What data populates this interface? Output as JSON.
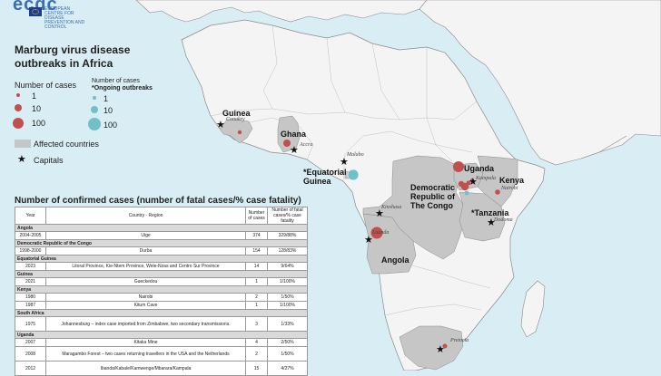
{
  "logo": {
    "text": "ecdc",
    "agency": "EUROPEAN CENTRE FOR DISEASE PREVENTION AND CONTROL"
  },
  "title": "Marburg virus disease outbreaks in Africa",
  "legend": {
    "cases_title": "Number of cases",
    "cases_values": [
      "1",
      "10",
      "100"
    ],
    "ongoing_title": "Number of cases",
    "ongoing_subtitle": "*Ongoing outbreaks",
    "ongoing_values": [
      "1",
      "10",
      "100"
    ],
    "affected_label": "Affected countries",
    "capitals_label": "Capitals"
  },
  "colors": {
    "past": "#c0504d",
    "ongoing": "#72bfc8",
    "affected": "#c6c6c6",
    "land": "#f4f4f4",
    "sea": "#d9eef4"
  },
  "countries": {
    "guinea": "Guinea",
    "ghana": "Ghana",
    "eq_guinea": "*Equatorial\nGuinea",
    "uganda": "Uganda",
    "kenya": "Kenya",
    "drc": "Democratic\nRepublic of\nThe Congo",
    "tanzania": "*Tanzania",
    "angola": "Angola"
  },
  "cities": {
    "conakry": "Conakry",
    "accra": "Accra",
    "malabo": "Malabo",
    "kinshasa": "Kinshasa",
    "luanda": "Luanda",
    "kampala": "Kampala",
    "nairobi": "Nairobi",
    "dodoma": "Dodoma",
    "pretoria": "Pretoria"
  },
  "table": {
    "title": "Number of confirmed cases (number of fatal cases/% case fatality)",
    "headers": [
      "Year",
      "Country - Region",
      "Number of cases",
      "Number of fatal cases/% case fatality"
    ],
    "sections": [
      {
        "name": "Angola",
        "rows": [
          [
            "2004-2005",
            "Uige",
            "374",
            "329/88%"
          ]
        ]
      },
      {
        "name": "Democratic Republic of the Congo",
        "rows": [
          [
            "1998-2000",
            "Durba",
            "154",
            "128/83%"
          ]
        ]
      },
      {
        "name": "Equatorial Guinea",
        "rows": [
          [
            "2023",
            "Litoral Province, Kie-Ntem Province, Wele-Nzas and Centro Sur Province",
            "14",
            "9/64%"
          ]
        ]
      },
      {
        "name": "Guinea",
        "rows": [
          [
            "2021",
            "Gueckedou",
            "1",
            "1/100%"
          ]
        ]
      },
      {
        "name": "Kenya",
        "rows": [
          [
            "1980",
            "Nairobi",
            "2",
            "1/50%"
          ],
          [
            "1987",
            "Kitum Cave",
            "1",
            "1/100%"
          ]
        ]
      },
      {
        "name": "South Africa",
        "rows": [
          [
            "1975",
            "Johannesburg – index case imported from Zimbabwe, two secondary transmissions.",
            "3",
            "1/33%"
          ]
        ]
      },
      {
        "name": "Uganda",
        "rows": [
          [
            "2007",
            "Kitaka Mine",
            "4",
            "2/50%"
          ],
          [
            "2008",
            "Maragambo Forest – two cases returning travellers in the USA and the Netherlands",
            "2",
            "1/50%"
          ],
          [
            "2012",
            "Ibanda/Kabale/Kamwenge/Mbarara/Kampala",
            "15",
            "4/27%"
          ]
        ]
      }
    ]
  }
}
